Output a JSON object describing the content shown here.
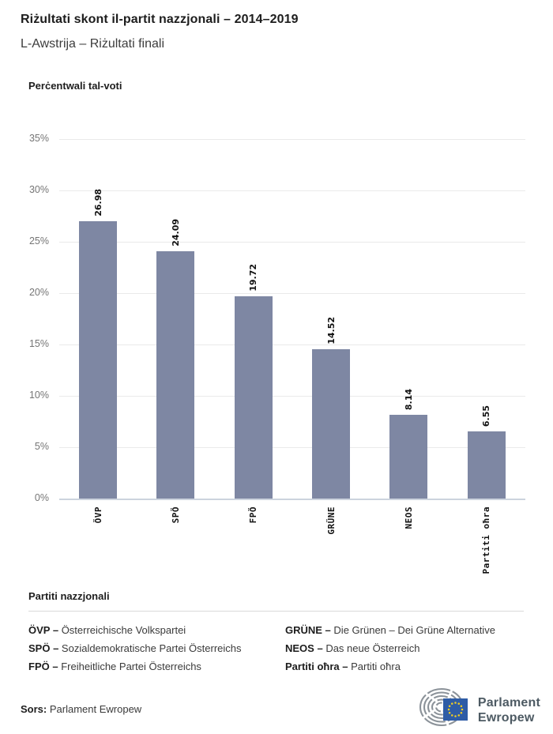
{
  "header": {
    "title": "Riżultati skont il-partit nazzjonali – 2014–2019",
    "subtitle": "L-Awstrija – Riżultati finali"
  },
  "chart_data": {
    "type": "bar",
    "title": "Perċentwali tal-voti",
    "categories": [
      "ÖVP",
      "SPÖ",
      "FPÖ",
      "GRÜNE",
      "NEOS",
      "Partiti oħra"
    ],
    "values": [
      26.98,
      24.09,
      19.72,
      14.52,
      8.14,
      6.55
    ],
    "value_labels": [
      "26.98",
      "24.09",
      "19.72",
      "14.52",
      "8.14",
      "6.55"
    ],
    "xlabel": "",
    "ylabel": "Perċentwali tal-voti",
    "ylim": [
      0,
      35
    ],
    "y_ticks": [
      {
        "label": "35%",
        "value": 35
      },
      {
        "label": "30%",
        "value": 30
      },
      {
        "label": "25%",
        "value": 25
      },
      {
        "label": "20%",
        "value": 20
      },
      {
        "label": "15%",
        "value": 15
      },
      {
        "label": "10%",
        "value": 10
      },
      {
        "label": "5%",
        "value": 5
      },
      {
        "label": "0%",
        "value": 0
      }
    ],
    "grid": true,
    "legend_position": "none",
    "colors": {
      "bar": "#7e87a3",
      "grid": "#eaeaea",
      "axis_line": "#ccd3de",
      "tick_text": "#757575",
      "value_text": "#111111"
    }
  },
  "legend": {
    "title": "Partiti nazzjonali",
    "columns": [
      [
        {
          "abbr": "ÖVP –",
          "desc": "Österreichische Volkspartei"
        },
        {
          "abbr": "SPÖ –",
          "desc": "Sozialdemokratische Partei Österreichs"
        },
        {
          "abbr": "FPÖ –",
          "desc": "Freiheitliche Partei Österreichs"
        }
      ],
      [
        {
          "abbr": "GRÜNE –",
          "desc": "Die Grünen – Dei Grüne Alternative"
        },
        {
          "abbr": "NEOS –",
          "desc": "Das neue Österreich"
        },
        {
          "abbr": "Partiti oħra –",
          "desc": "Partiti oħra"
        }
      ]
    ]
  },
  "footer": {
    "source_label": "Sors:",
    "source_value": "Parlament Ewropew",
    "logo_line1": "Parlament",
    "logo_line2": "Ewropew",
    "logo_colors": {
      "hemicycle_gray": "#8b9299",
      "flag_blue": "#2e5ca6",
      "star_yellow": "#f5d020",
      "text_gray": "#4d5a63"
    }
  }
}
